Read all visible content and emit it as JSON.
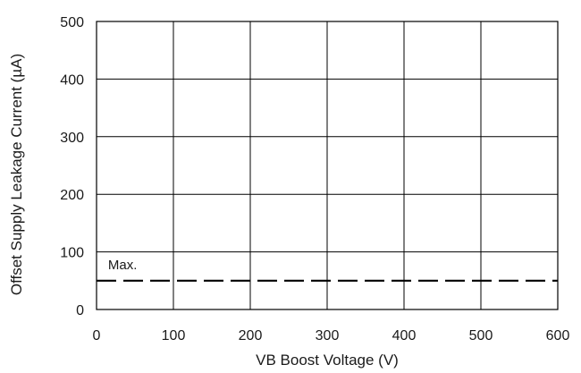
{
  "chart_data": {
    "type": "line",
    "title": "",
    "xlabel": "VB Boost Voltage (V)",
    "ylabel": "Offset Supply Leakage Current (µA)",
    "xlim": [
      0,
      600
    ],
    "ylim": [
      0,
      500
    ],
    "x_ticks": [
      "0",
      "100",
      "200",
      "300",
      "400",
      "500",
      "600"
    ],
    "y_ticks": [
      "0",
      "100",
      "200",
      "300",
      "400",
      "500"
    ],
    "grid": true,
    "series": [
      {
        "name": "Max.",
        "style": "dashed",
        "color": "#000000",
        "x": [
          0,
          600
        ],
        "y": [
          50,
          50
        ]
      }
    ],
    "annotations": [
      {
        "text": "Max.",
        "x": 15,
        "y": 70
      }
    ]
  }
}
